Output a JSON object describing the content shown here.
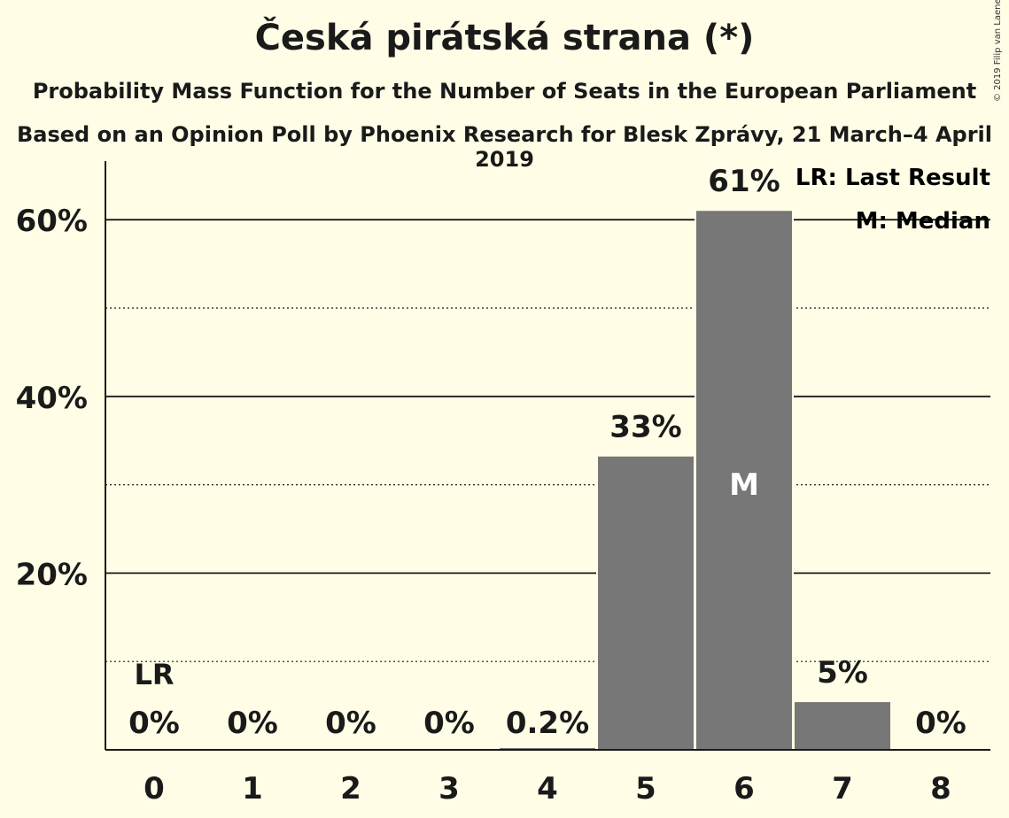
{
  "title": "Česká pirátská strana (*)",
  "subtitle": "Probability Mass Function for the Number of Seats in the European Parliament",
  "subtitle2": "Based on an Opinion Poll by Phoenix Research for Blesk Zprávy, 21 March–4 April 2019",
  "copyright": "© 2019 Filip van Laenen",
  "legend": {
    "last_result": "LR: Last Result",
    "median": "M: Median"
  },
  "colors": {
    "background": "#fffde6",
    "bar": "#777777",
    "text": "#1a1a1a"
  },
  "chart_data": {
    "type": "bar",
    "categories": [
      "0",
      "1",
      "2",
      "3",
      "4",
      "5",
      "6",
      "7",
      "8"
    ],
    "values": [
      0,
      0,
      0,
      0,
      0.2,
      33,
      61,
      5,
      0
    ],
    "plotted_values": [
      0,
      0,
      0,
      0,
      0.2,
      33.2,
      61,
      5.4,
      0
    ],
    "data_labels": [
      "0%",
      "0%",
      "0%",
      "0%",
      "0.2%",
      "33%",
      "61%",
      "5%",
      "0%"
    ],
    "yticks": [
      20,
      40,
      60
    ],
    "ytick_labels": [
      "20%",
      "40%",
      "60%"
    ],
    "minor_gridlines": [
      10,
      30,
      50
    ],
    "ylim": [
      0,
      66.5
    ],
    "last_result_seat": 0,
    "last_result_label": "LR",
    "median_seat": 6,
    "median_label": "M",
    "legend_position": "top-right",
    "grid": true
  }
}
